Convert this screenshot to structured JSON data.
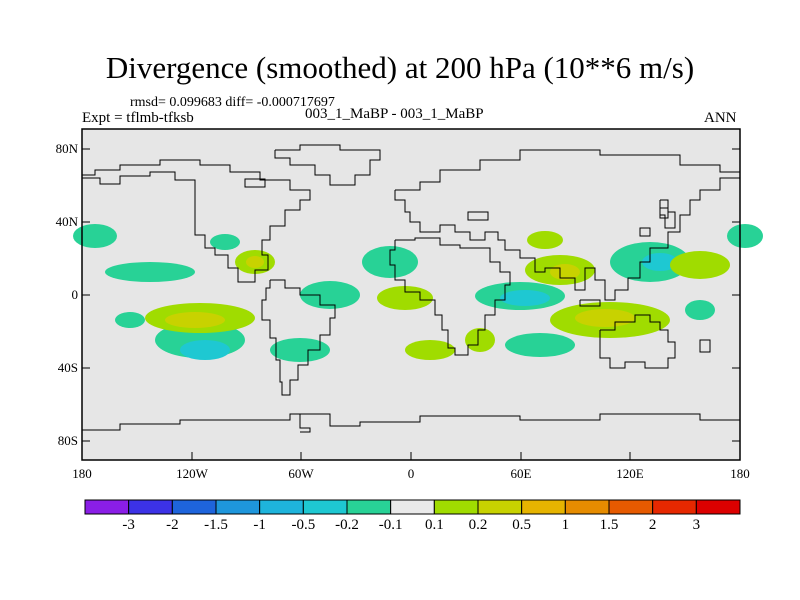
{
  "title": "Divergence (smoothed) at 200 hPa (10**6 m/s)",
  "stats": "rmsd= 0.099683 diff= -0.000717697",
  "expt": "Expt = tflmb-tfksb",
  "case": "003_1_MaBP - 003_1_MaBP",
  "season": "ANN",
  "y_ticks": [
    "80N",
    "40N",
    "0",
    "40S",
    "80S"
  ],
  "x_ticks": [
    "180",
    "120W",
    "60W",
    "0",
    "60E",
    "120E",
    "180"
  ],
  "colorbar": {
    "labels": [
      "-3",
      "-2",
      "-1.5",
      "-1",
      "-0.5",
      "-0.2",
      "-0.1",
      "0.1",
      "0.2",
      "0.5",
      "1",
      "1.5",
      "2",
      "3"
    ],
    "colors": [
      "#8a1ee6",
      "#3c32e6",
      "#1e64dc",
      "#1e96dc",
      "#1eb4dc",
      "#1ec8d2",
      "#28d296",
      "#eaeaea",
      "#a0dc00",
      "#c8d200",
      "#e6b400",
      "#e68c00",
      "#e65a00",
      "#e62800",
      "#dc0000"
    ]
  },
  "colors": {
    "land_fill": "#e6e6e6",
    "coast": "#000000"
  }
}
